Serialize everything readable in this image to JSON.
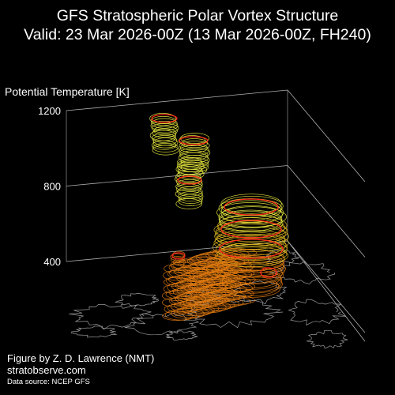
{
  "title": {
    "line1": "GFS Stratospheric Polar Vortex Structure",
    "line2": "Valid: 23 Mar 2026-00Z  (13 Mar 2026-00Z, FH240)"
  },
  "credits": {
    "author": "Figure by Z. D. Lawrence (NMT)",
    "site": "stratobserve.com",
    "source": "Data source: NCEP GFS"
  },
  "chart_data": {
    "type": "3d-isosurface",
    "zlabel": "Potential Temperature [K]",
    "z_ticks": [
      400,
      800,
      1200
    ],
    "grid": true,
    "background": "#000000",
    "colors": {
      "low": "#e07a10",
      "mid": "#e8c020",
      "high": "#f0f040",
      "edge": "#ff2a1a",
      "coast": "#9a9a9a",
      "axis": "#b0b0b0"
    }
  }
}
